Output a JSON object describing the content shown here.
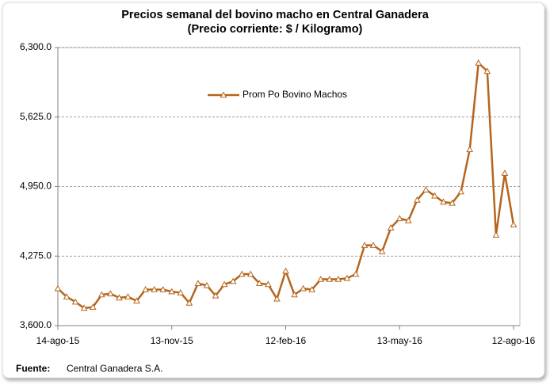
{
  "chart_data": {
    "type": "line",
    "title": "Precios semanal del bovino  macho en Central Ganadera",
    "subtitle": "(Precio corriente: $ / Kilogramo)",
    "source_label": "Fuente:",
    "source": "Central Ganadera S.A.",
    "categories": [
      "14-ago-15",
      null,
      null,
      null,
      null,
      null,
      null,
      null,
      null,
      null,
      null,
      null,
      null,
      "13-nov-15",
      null,
      null,
      null,
      null,
      null,
      null,
      null,
      null,
      null,
      null,
      null,
      null,
      "12-feb-16",
      null,
      null,
      null,
      null,
      null,
      null,
      null,
      null,
      null,
      null,
      null,
      null,
      "13-may-16",
      null,
      null,
      null,
      null,
      null,
      null,
      null,
      null,
      null,
      null,
      null,
      null,
      "12-ago-16"
    ],
    "series": [
      {
        "name": "Prom Po Bovino Machos",
        "color": "#b5651d",
        "values": [
          3960,
          3880,
          3830,
          3770,
          3780,
          3900,
          3910,
          3870,
          3880,
          3840,
          3950,
          3950,
          3950,
          3930,
          3920,
          3820,
          4010,
          3990,
          3890,
          4000,
          4030,
          4100,
          4100,
          4010,
          4000,
          3860,
          4130,
          3900,
          3960,
          3950,
          4050,
          4050,
          4050,
          4060,
          4100,
          4380,
          4380,
          4320,
          4550,
          4640,
          4620,
          4820,
          4920,
          4860,
          4800,
          4790,
          4900,
          5310,
          6150,
          6070,
          4480,
          5080,
          4580
        ]
      }
    ],
    "ylim": [
      3600,
      6300
    ],
    "yticks": [
      {
        "value": 3600,
        "label": "3,600.0"
      },
      {
        "value": 4275,
        "label": "4,275.0"
      },
      {
        "value": 4950,
        "label": "4,950.0"
      },
      {
        "value": 5625,
        "label": "5,625.0"
      },
      {
        "value": 6300,
        "label": "6,300.0"
      }
    ],
    "grid": true,
    "legend": "top"
  }
}
